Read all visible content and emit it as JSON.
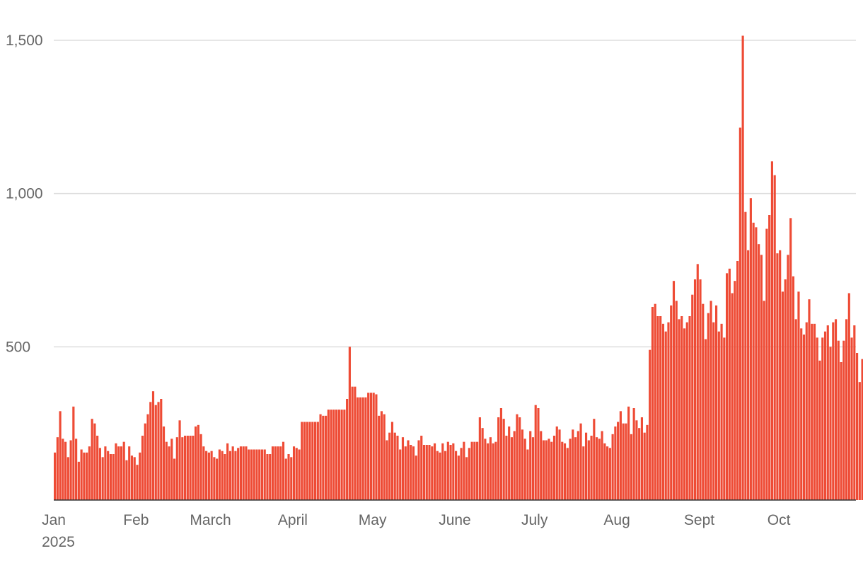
{
  "chart_data": {
    "type": "bar",
    "color": "#ee4b35",
    "grid": true,
    "title": "",
    "xlabel": "",
    "ylabel": "",
    "ylim": [
      0,
      1500
    ],
    "y_ticks": [
      {
        "value": 500,
        "label": "500"
      },
      {
        "value": 1000,
        "label": "1,000"
      },
      {
        "value": 1500,
        "label": "1,500"
      }
    ],
    "x_ticks": [
      {
        "date": "2025-01-01",
        "label": "Jan",
        "sublabel": "2025"
      },
      {
        "date": "2025-02-01",
        "label": "Feb"
      },
      {
        "date": "2025-03-01",
        "label": "March"
      },
      {
        "date": "2025-04-01",
        "label": "April"
      },
      {
        "date": "2025-05-01",
        "label": "May"
      },
      {
        "date": "2025-06-01",
        "label": "June"
      },
      {
        "date": "2025-07-01",
        "label": "July"
      },
      {
        "date": "2025-08-01",
        "label": "Aug"
      },
      {
        "date": "2025-09-01",
        "label": "Sept"
      },
      {
        "date": "2025-10-01",
        "label": "Oct"
      }
    ],
    "x_start": "2025-01-01",
    "x_end": "2025-10-29",
    "values": [
      155,
      205,
      290,
      200,
      190,
      140,
      195,
      305,
      200,
      125,
      165,
      155,
      155,
      175,
      265,
      250,
      210,
      170,
      140,
      175,
      160,
      150,
      150,
      185,
      175,
      175,
      190,
      130,
      175,
      145,
      140,
      115,
      155,
      210,
      250,
      280,
      320,
      355,
      310,
      320,
      330,
      240,
      190,
      175,
      200,
      135,
      205,
      260,
      205,
      210,
      210,
      210,
      210,
      240,
      245,
      215,
      175,
      160,
      155,
      160,
      140,
      135,
      165,
      160,
      150,
      185,
      160,
      175,
      160,
      170,
      175,
      175,
      175,
      165,
      165,
      165,
      165,
      165,
      165,
      165,
      150,
      150,
      175,
      175,
      175,
      175,
      190,
      135,
      150,
      140,
      175,
      170,
      165,
      255,
      255,
      255,
      255,
      255,
      255,
      255,
      280,
      275,
      275,
      295,
      295,
      295,
      295,
      295,
      295,
      295,
      330,
      500,
      370,
      370,
      335,
      335,
      335,
      335,
      350,
      350,
      350,
      345,
      275,
      290,
      280,
      195,
      220,
      255,
      220,
      210,
      165,
      205,
      175,
      195,
      180,
      175,
      145,
      195,
      210,
      180,
      180,
      180,
      175,
      185,
      160,
      155,
      185,
      160,
      190,
      180,
      185,
      160,
      145,
      170,
      190,
      140,
      170,
      190,
      190,
      190,
      270,
      235,
      200,
      185,
      205,
      185,
      190,
      270,
      300,
      265,
      210,
      240,
      205,
      225,
      280,
      270,
      230,
      200,
      165,
      225,
      205,
      310,
      300,
      225,
      195,
      195,
      200,
      190,
      210,
      240,
      230,
      190,
      185,
      170,
      200,
      230,
      205,
      225,
      250,
      175,
      220,
      195,
      210,
      265,
      205,
      200,
      225,
      185,
      175,
      170,
      215,
      240,
      255,
      290,
      250,
      250,
      305,
      215,
      300,
      260,
      235,
      270,
      220,
      245,
      490,
      630,
      640,
      600,
      600,
      575,
      550,
      580,
      635,
      715,
      650,
      590,
      600,
      560,
      580,
      600,
      670,
      720,
      770,
      720,
      640,
      525,
      610,
      650,
      580,
      635,
      550,
      575,
      530,
      740,
      755,
      675,
      715,
      780,
      1215,
      1515,
      940,
      815,
      985,
      905,
      890,
      835,
      800,
      650,
      885,
      930,
      1105,
      1060,
      805,
      815,
      680,
      720,
      800,
      920,
      730,
      590,
      680,
      560,
      540,
      580,
      655,
      575,
      575,
      530,
      455,
      530,
      550,
      570,
      500,
      580,
      590,
      520,
      450,
      520,
      590,
      675,
      530,
      570,
      480,
      385,
      460,
      460,
      480
    ]
  }
}
